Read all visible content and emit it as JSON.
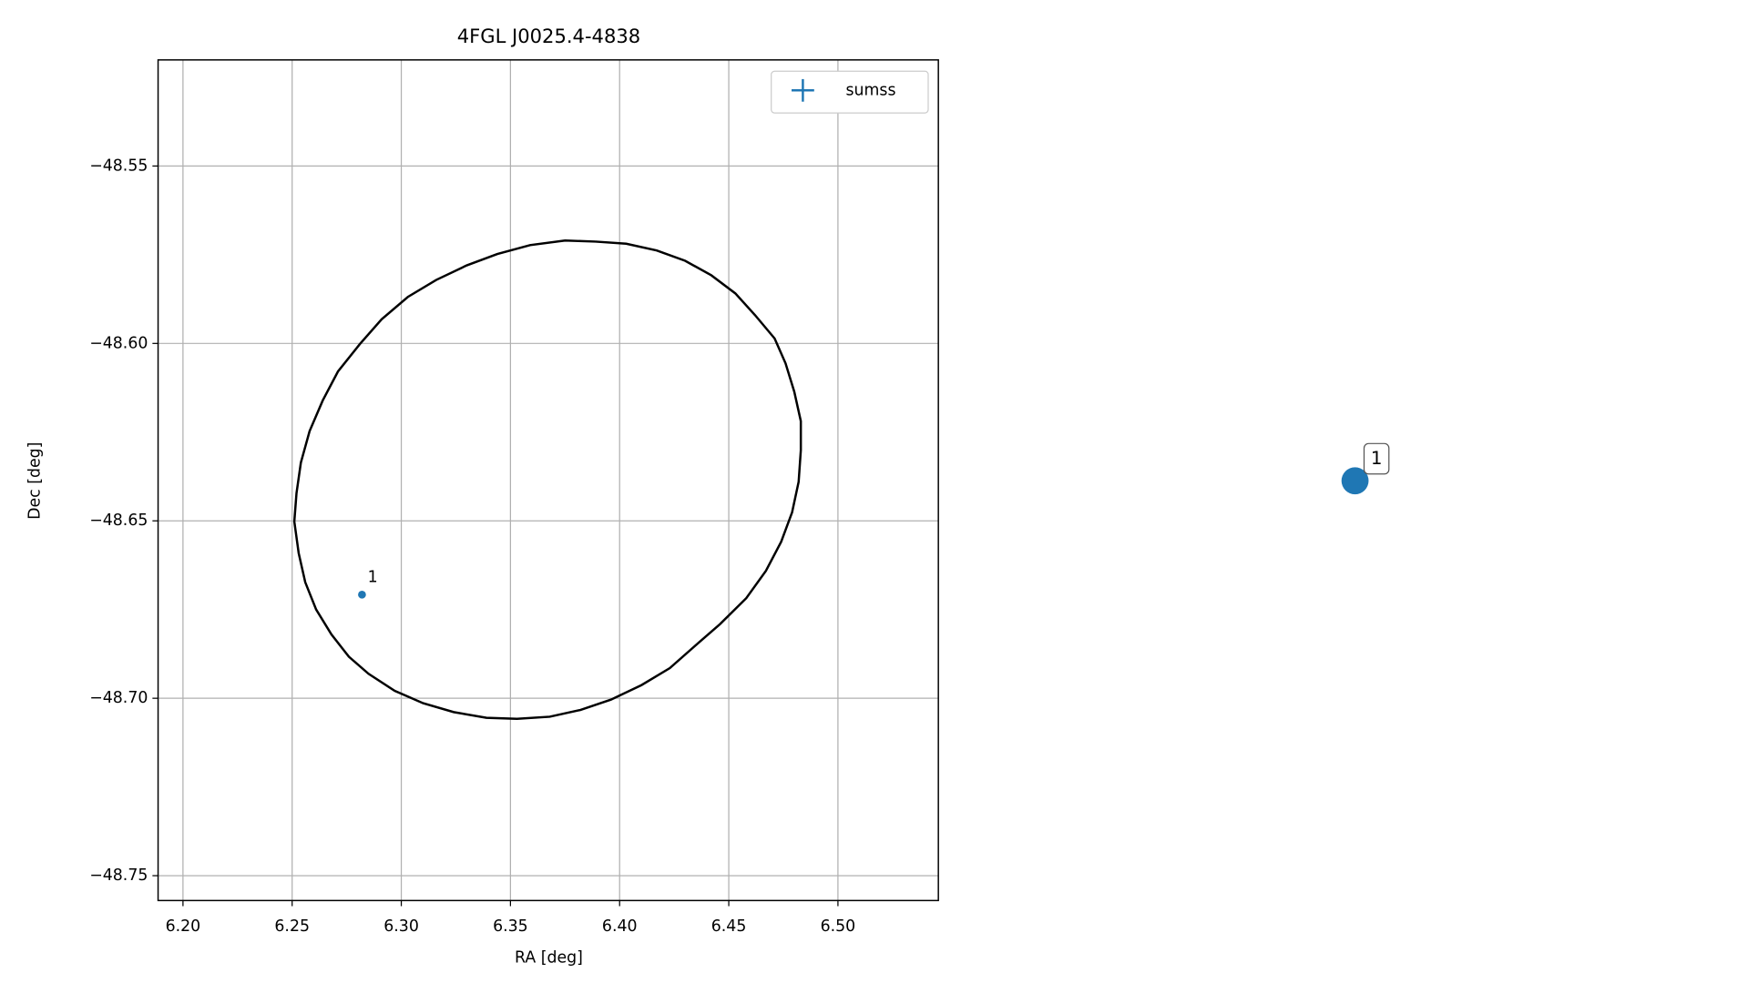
{
  "chart_data": {
    "type": "scatter",
    "title": "4FGL J0025.4-4838",
    "x_label": "RA [deg]",
    "y_label": "Dec [deg]",
    "xlim": [
      6.1886,
      6.546
    ],
    "ylim": [
      -48.757,
      -48.5201
    ],
    "xticks": [
      {
        "value": 6.2,
        "label": "6.20"
      },
      {
        "value": 6.25,
        "label": "6.25"
      },
      {
        "value": 6.3,
        "label": "6.30"
      },
      {
        "value": 6.35,
        "label": "6.35"
      },
      {
        "value": 6.4,
        "label": "6.40"
      },
      {
        "value": 6.45,
        "label": "6.45"
      },
      {
        "value": 6.5,
        "label": "6.50"
      }
    ],
    "yticks": [
      {
        "value": -48.55,
        "label": "−48.55"
      },
      {
        "value": -48.6,
        "label": "−48.60"
      },
      {
        "value": -48.65,
        "label": "−48.65"
      },
      {
        "value": -48.7,
        "label": "−48.70"
      },
      {
        "value": -48.75,
        "label": "−48.75"
      }
    ],
    "grid": true,
    "legend": "upper right",
    "series": [
      {
        "name": "sumss",
        "color": "#1f77b4",
        "x": [
          6.282
        ],
        "values": [
          -48.6708
        ],
        "labels": [
          "1"
        ]
      }
    ],
    "ellipse": {
      "color": "#000000",
      "x": [
        6.389,
        6.403,
        6.417,
        6.43,
        6.442,
        6.453,
        6.462,
        6.471,
        6.476,
        6.48,
        6.483,
        6.483,
        6.482,
        6.479,
        6.474,
        6.467,
        6.458,
        6.446,
        6.437,
        6.423,
        6.41,
        6.396,
        6.382,
        6.368,
        6.353,
        6.339,
        6.324,
        6.31,
        6.297,
        6.285,
        6.276,
        6.268,
        6.261,
        6.256,
        6.253,
        6.251,
        6.252,
        6.254,
        6.258,
        6.264,
        6.271,
        6.281,
        6.291,
        6.303,
        6.316,
        6.33,
        6.344,
        6.359,
        6.375,
        6.389
      ],
      "y": [
        -48.5713,
        -48.5719,
        -48.5738,
        -48.5767,
        -48.5808,
        -48.5859,
        -48.592,
        -48.5986,
        -48.6056,
        -48.6136,
        -48.6219,
        -48.6301,
        -48.639,
        -48.6476,
        -48.6559,
        -48.6641,
        -48.6718,
        -48.6791,
        -48.6839,
        -48.6915,
        -48.6963,
        -48.7004,
        -48.7033,
        -48.7052,
        -48.7058,
        -48.7055,
        -48.7039,
        -48.7014,
        -48.6979,
        -48.6931,
        -48.6883,
        -48.682,
        -48.675,
        -48.6673,
        -48.6591,
        -48.6502,
        -48.6422,
        -48.6336,
        -48.6247,
        -48.6161,
        -48.6079,
        -48.6002,
        -48.5932,
        -48.5869,
        -48.5821,
        -48.578,
        -48.5748,
        -48.5723,
        -48.571,
        -48.5713
      ]
    }
  }
}
